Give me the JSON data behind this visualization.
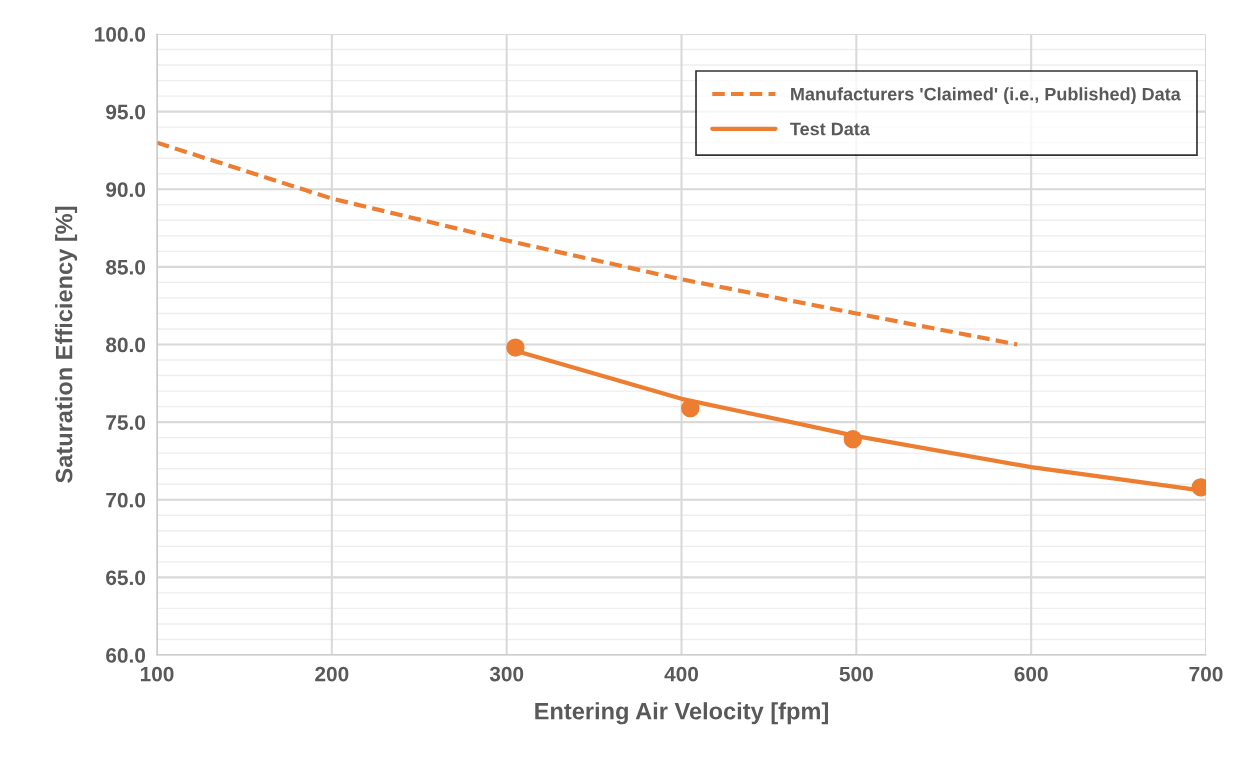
{
  "chart_data": {
    "type": "line",
    "xlabel": "Entering Air Velocity [fpm]",
    "ylabel": "Saturation Efficiency [%]",
    "series": [
      {
        "name": "Manufacturers 'Claimed' (i.e., Published) Data",
        "line_style": "dashed",
        "color": "#ed7d31",
        "x": [
          100,
          200,
          300,
          400,
          500,
          592
        ],
        "values": [
          93.0,
          89.4,
          86.7,
          84.2,
          82.0,
          80.0
        ]
      },
      {
        "name": "Test Data",
        "line_style": "solid",
        "color": "#ed7d31",
        "x": [
          305,
          400,
          500,
          600,
          697
        ],
        "values": [
          79.6,
          76.5,
          74.1,
          72.1,
          70.6
        ]
      },
      {
        "type": "scatter",
        "marker": "circle",
        "color": "#ed7d31",
        "x": [
          305,
          405,
          498,
          697
        ],
        "values": [
          79.8,
          75.9,
          73.9,
          70.8
        ]
      }
    ],
    "xlim": [
      100,
      700
    ],
    "xticks": [
      100,
      200,
      300,
      400,
      500,
      600,
      700
    ],
    "ylim": [
      60,
      100
    ],
    "yticks": [
      {
        "value": 60,
        "label": "60.0"
      },
      {
        "value": 65,
        "label": "65.0"
      },
      {
        "value": 70,
        "label": "70.0"
      },
      {
        "value": 75,
        "label": "75.0"
      },
      {
        "value": 80,
        "label": "80.0"
      },
      {
        "value": 85,
        "label": "85.0"
      },
      {
        "value": 90,
        "label": "90.0"
      },
      {
        "value": 95,
        "label": "95.0"
      },
      {
        "value": 100,
        "label": "100.0"
      }
    ],
    "grid": true,
    "legend": "top right"
  }
}
